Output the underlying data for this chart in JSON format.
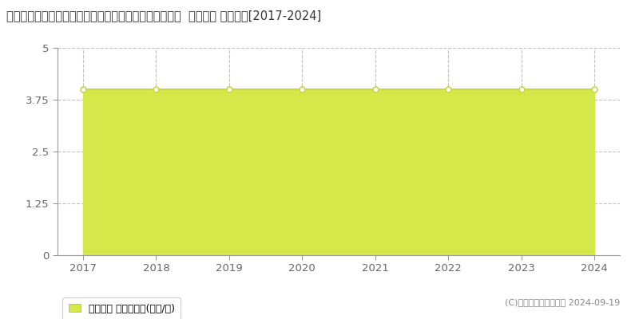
{
  "title": "宮崎県児湯郡新富町大字上富田字中ノ丸３４００番５３  基準地価 地価推移[2017-2024]",
  "years": [
    2017,
    2018,
    2019,
    2020,
    2021,
    2022,
    2023,
    2024
  ],
  "values": [
    4.0,
    4.0,
    4.0,
    4.0,
    4.0,
    4.0,
    4.0,
    4.0
  ],
  "line_color": "#c5d93a",
  "fill_color": "#d4e84a",
  "fill_alpha": 1.0,
  "marker_color": "#ffffff",
  "marker_edge_color": "#c5d93a",
  "marker_size": 5,
  "ylim": [
    0,
    5
  ],
  "yticks": [
    0,
    1.25,
    2.5,
    3.75,
    5
  ],
  "xlim": [
    2016.65,
    2024.35
  ],
  "xticks": [
    2017,
    2018,
    2019,
    2020,
    2021,
    2022,
    2023,
    2024
  ],
  "grid_color": "#bbbbbb",
  "grid_style": "--",
  "grid_alpha": 0.9,
  "background_color": "#ffffff",
  "legend_label": "基準地価 平均坪単価(万円/坪)",
  "legend_marker_color": "#d4e84a",
  "copyright_text": "(C)土地価格ドットコム 2024-09-19",
  "title_fontsize": 10.5,
  "axis_fontsize": 9.5,
  "legend_fontsize": 9,
  "copyright_fontsize": 8,
  "spine_color": "#999999",
  "tick_color": "#666666"
}
